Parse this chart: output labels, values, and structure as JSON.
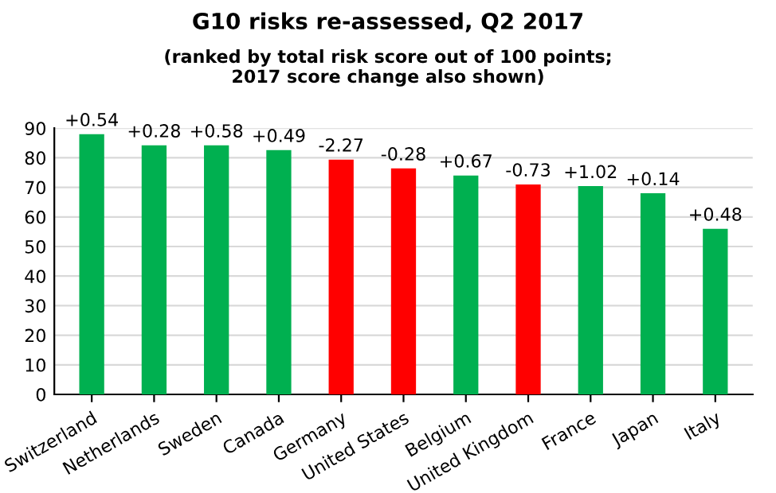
{
  "chart_data": {
    "type": "bar",
    "title": "G10 risks re-assessed, Q2 2017",
    "subtitle": "(ranked by total risk score out of 100 points;\n2017 score change also shown)",
    "categories": [
      "Switzerland",
      "Netherlands",
      "Sweden",
      "Canada",
      "Germany",
      "United States",
      "Belgium",
      "United Kingdom",
      "France",
      "Japan",
      "Italy"
    ],
    "values": [
      88,
      84.2,
      84.2,
      82.6,
      79.4,
      76.4,
      74,
      71,
      70.4,
      68,
      56
    ],
    "colors": [
      "#00b050",
      "#00b050",
      "#00b050",
      "#00b050",
      "#ff0000",
      "#ff0000",
      "#00b050",
      "#ff0000",
      "#00b050",
      "#00b050",
      "#00b050"
    ],
    "annotations": [
      {
        "text": "+0.54",
        "x": "Switzerland",
        "y": 88
      },
      {
        "text": "+0.28",
        "x": "Netherlands",
        "y": 84.2
      },
      {
        "text": "+0.58",
        "x": "Sweden",
        "y": 84.2
      },
      {
        "text": "+0.49",
        "x": "Canada",
        "y": 82.6
      },
      {
        "text": "-2.27",
        "x": "Germany",
        "y": 79.4
      },
      {
        "text": "-0.28",
        "x": "United States",
        "y": 76.4
      },
      {
        "text": "+0.67",
        "x": "Belgium",
        "y": 74
      },
      {
        "text": "-0.73",
        "x": "United Kingdom",
        "y": 71
      },
      {
        "text": "+1.02",
        "x": "France",
        "y": 70.4
      },
      {
        "text": "+0.14",
        "x": "Japan",
        "y": 68
      },
      {
        "text": "+0.48",
        "x": "Italy",
        "y": 56
      }
    ],
    "ylim": [
      0,
      90
    ],
    "yticks": [
      0,
      10,
      20,
      30,
      40,
      50,
      60,
      70,
      80,
      90
    ],
    "grid": "y"
  }
}
